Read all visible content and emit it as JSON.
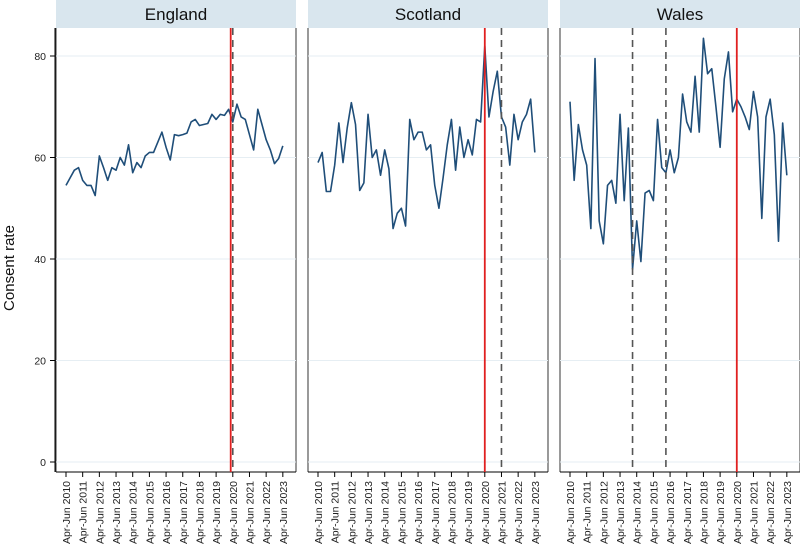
{
  "chart_data": {
    "type": "line",
    "ylabel": "Consent rate",
    "xlabel": "",
    "ylim": [
      0,
      85
    ],
    "yticks": [
      0,
      20,
      40,
      60,
      80
    ],
    "grid": true,
    "xlim": [
      0,
      53
    ],
    "x_ticks": [
      {
        "q": 0,
        "label": "Apr-Jun 2010"
      },
      {
        "q": 4,
        "label": "Apr-Jun 2011"
      },
      {
        "q": 8,
        "label": "Apr-Jun 2012"
      },
      {
        "q": 12,
        "label": "Apr-Jun 2013"
      },
      {
        "q": 16,
        "label": "Apr-Jun 2014"
      },
      {
        "q": 20,
        "label": "Apr-Jun 2015"
      },
      {
        "q": 24,
        "label": "Apr-Jun 2016"
      },
      {
        "q": 28,
        "label": "Apr-Jun 2017"
      },
      {
        "q": 32,
        "label": "Apr-Jun 2018"
      },
      {
        "q": 36,
        "label": "Apr-Jun 2019"
      },
      {
        "q": 40,
        "label": "Apr-Jun 2020"
      },
      {
        "q": 44,
        "label": "Apr-Jun 2021"
      },
      {
        "q": 48,
        "label": "Apr-Jun 2022"
      },
      {
        "q": 52,
        "label": "Apr-Jun 2023"
      }
    ],
    "line_color": "#1f4e79",
    "solid_line_color": "#e02020",
    "dashed_line_color": "#555555",
    "strip_color": "#d9e6ee",
    "panels": [
      {
        "name": "England",
        "solid_lines": [
          39.5
        ],
        "dashed_lines": [
          40
        ],
        "values": [
          54.5,
          56,
          57.5,
          58,
          55.5,
          54.5,
          54.5,
          52.5,
          60.3,
          58,
          55.5,
          58,
          57.5,
          60,
          58.5,
          62.5,
          57,
          59,
          58,
          60.3,
          61,
          61,
          63,
          65,
          62,
          59.5,
          64.5,
          64.3,
          64.5,
          64.8,
          67,
          67.5,
          66.3,
          66.5,
          66.7,
          68.5,
          67.5,
          68.5,
          68.3,
          69.5,
          67,
          70.5,
          68,
          67.5,
          64.5,
          61.5,
          69.5,
          66.5,
          63.5,
          61.5,
          58.8,
          59.8,
          62.3
        ]
      },
      {
        "name": "Scotland",
        "solid_lines": [
          40
        ],
        "dashed_lines": [
          44
        ],
        "values": [
          59,
          61,
          53.3,
          53.3,
          58.5,
          66.8,
          59,
          65.8,
          70.8,
          66.5,
          53.5,
          55,
          68.5,
          60,
          61.5,
          56.5,
          61.5,
          57.8,
          46,
          49,
          50,
          46.5,
          67.5,
          63.5,
          65,
          65,
          61.5,
          62.5,
          54.5,
          50,
          56,
          62.5,
          67.5,
          57.5,
          66,
          60,
          63.5,
          60.5,
          67.5,
          67,
          82,
          68,
          73,
          77,
          68,
          66,
          58.5,
          68.5,
          63.5,
          67,
          68.5,
          71.5,
          61
        ]
      },
      {
        "name": "Wales",
        "solid_lines": [
          40
        ],
        "dashed_lines": [
          15,
          23
        ],
        "values": [
          71,
          55.5,
          66.5,
          61.5,
          58.5,
          46,
          79.5,
          47.5,
          43,
          54.5,
          55.5,
          51,
          68.5,
          51.5,
          65.8,
          38,
          47.5,
          39.5,
          53,
          53.5,
          51.5,
          67.5,
          58,
          57,
          61.5,
          57,
          60,
          72.5,
          67,
          65,
          76,
          65,
          83.5,
          76.5,
          77.5,
          70,
          62,
          75.5,
          80.8,
          69,
          71.5,
          70,
          68,
          65.5,
          73,
          68,
          48,
          68,
          71.5,
          64.5,
          43.5,
          66.8,
          56.5
        ]
      }
    ]
  }
}
